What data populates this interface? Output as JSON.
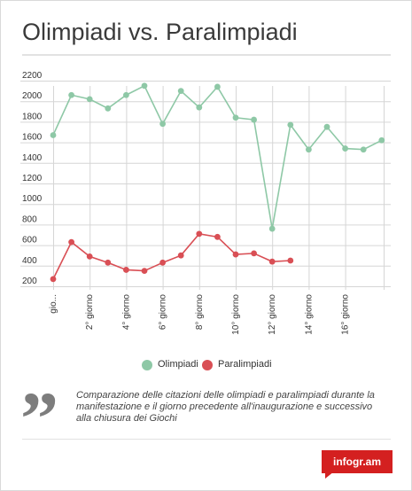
{
  "title": "Olimpiadi vs. Paralimpiadi",
  "caption": "Comparazione delle citazioni delle olimpiadi e paralimpiadi durante la manifestazione e il giorno precedente all'inaugurazione e successivo alla chiusura dei Giochi",
  "quote_glyph": "”",
  "logo_text": "infogr.am",
  "colors": {
    "olimpiadi": "#8ec8a6",
    "paralimpiadi": "#d94f55",
    "grid": "#d6d6d6",
    "axis_text": "#333333"
  },
  "chart_data": {
    "type": "line",
    "title": "Olimpiadi vs. Paralimpiadi",
    "x_tick_labels": [
      "gio...",
      "",
      "2° giorno",
      "",
      "4° giorno",
      "",
      "6° giorno",
      "",
      "8° giorno",
      "",
      "10° giorno",
      "",
      "12° giorno",
      "",
      "14° giorno",
      "",
      "16° giorno",
      "",
      ""
    ],
    "ylim": [
      200,
      2200
    ],
    "yticks": [
      200,
      400,
      600,
      800,
      1000,
      1200,
      1400,
      1600,
      1800,
      2000,
      2200
    ],
    "grid": true,
    "legend_position": "bottom",
    "series": [
      {
        "name": "Olimpiadi",
        "color": "#8ec8a6",
        "values": [
          1670,
          2060,
          2020,
          1930,
          2060,
          2150,
          1780,
          2100,
          1940,
          2140,
          1840,
          1820,
          760,
          1770,
          1530,
          1750,
          1540,
          1530,
          1620
        ]
      },
      {
        "name": "Paralimpiadi",
        "color": "#d94f55",
        "values": [
          270,
          630,
          490,
          430,
          360,
          350,
          430,
          500,
          710,
          680,
          510,
          520,
          440,
          450,
          null,
          null,
          null,
          null,
          null
        ]
      }
    ]
  }
}
